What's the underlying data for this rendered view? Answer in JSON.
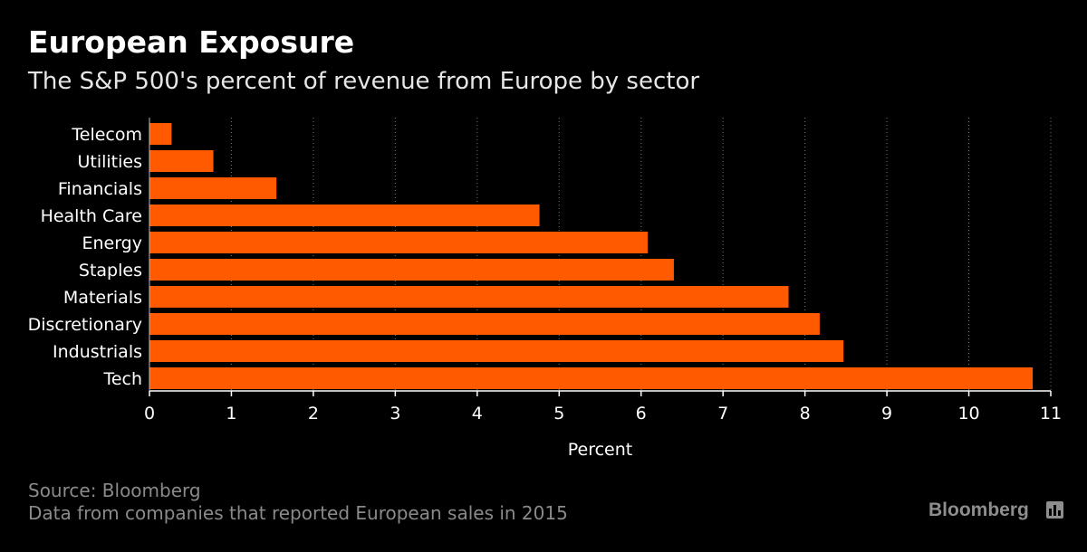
{
  "title": "European Exposure",
  "subtitle": "The S&P 500's percent of revenue from Europe by sector",
  "source": "Source: Bloomberg",
  "note": "Data from companies that reported European sales in 2015",
  "brand": "Bloomberg",
  "colors": {
    "background": "#000000",
    "bar": "#ff5a00",
    "text": "#ffffff",
    "muted": "#8a8a8a",
    "grid": "#777777"
  },
  "chart_data": {
    "type": "bar",
    "orientation": "horizontal",
    "categories": [
      "Telecom",
      "Utilities",
      "Financials",
      "Health Care",
      "Energy",
      "Staples",
      "Materials",
      "Discretionary",
      "Industrials",
      "Tech"
    ],
    "values": [
      0.27,
      0.78,
      1.55,
      4.76,
      6.08,
      6.4,
      7.8,
      8.18,
      8.47,
      10.78
    ],
    "xlabel": "Percent",
    "ylabel": "",
    "xlim": [
      0,
      11
    ],
    "xticks": [
      0,
      1,
      2,
      3,
      4,
      5,
      6,
      7,
      8,
      9,
      10,
      11
    ],
    "grid": "vertical dotted"
  }
}
